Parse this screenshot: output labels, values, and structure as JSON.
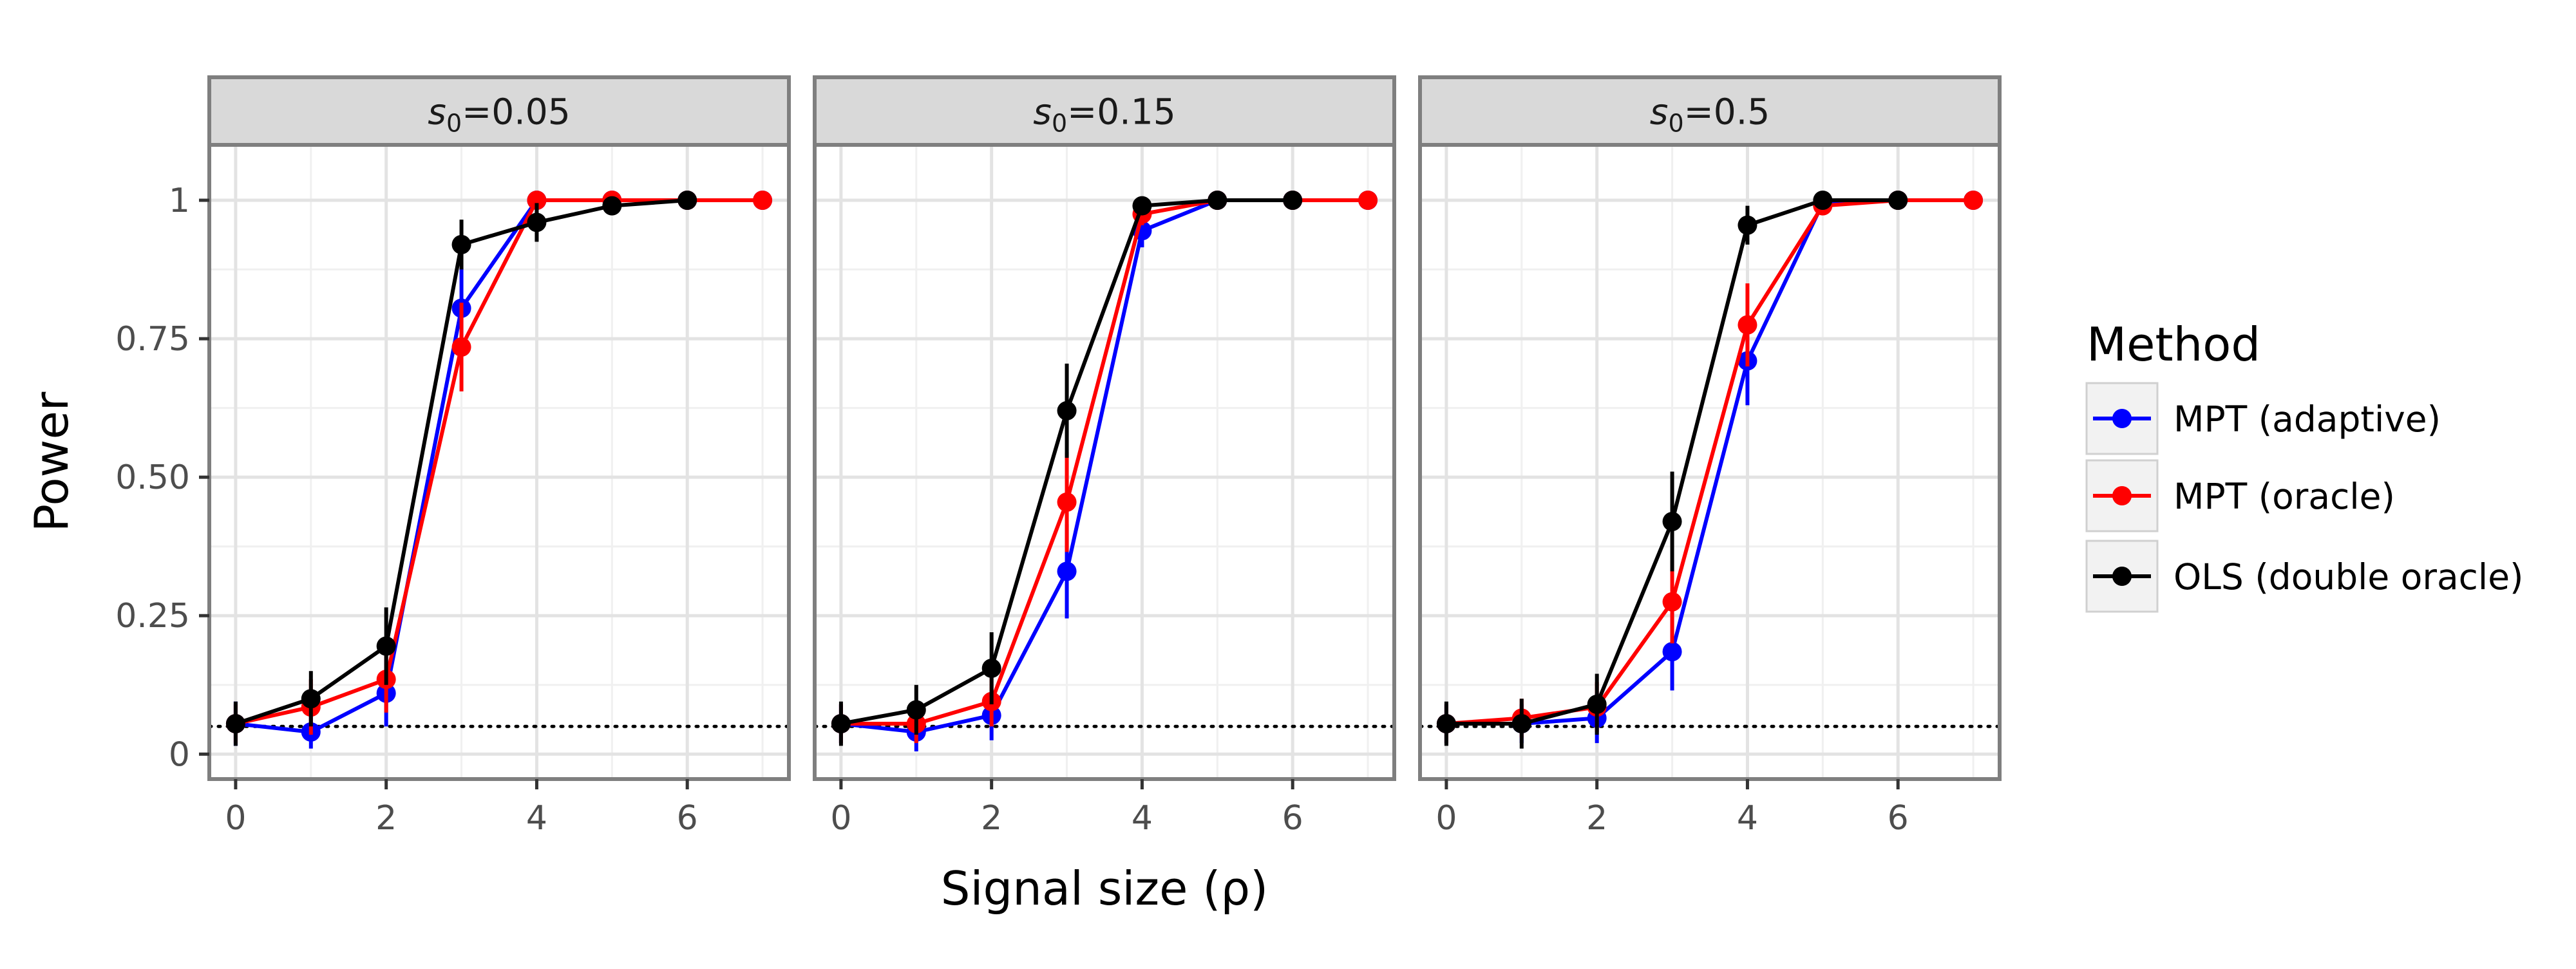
{
  "chart_data": {
    "type": "line",
    "xlabel": "Signal size (ρ)",
    "ylabel": "Power",
    "xlim": [
      -0.35,
      7.35
    ],
    "ylim": [
      -0.045,
      1.1
    ],
    "xticks": [
      0,
      2,
      4,
      6
    ],
    "xtick_labels": [
      "0",
      "2",
      "4",
      "6"
    ],
    "yticks": [
      0,
      0.25,
      0.5,
      0.75,
      1
    ],
    "ytick_labels": [
      "0",
      "0.25",
      "0.50",
      "0.75",
      "1"
    ],
    "reference_line": {
      "y": 0.05,
      "style": "dotted"
    },
    "legend": {
      "title": "Method",
      "position": "right",
      "entries": [
        "MPT (adaptive)",
        "MPT (oracle)",
        "OLS (double oracle)"
      ]
    },
    "panels": [
      {
        "strip": {
          "prefix": "s",
          "sub": "0",
          "suffix": "=0.05"
        },
        "series": [
          {
            "name": "MPT (adaptive)",
            "color": "#0000ff",
            "x": [
              0,
              1,
              2,
              3,
              4,
              5,
              6,
              7
            ],
            "y": [
              0.055,
              0.04,
              0.11,
              0.805,
              1.0,
              1.0,
              1.0,
              1.0
            ],
            "err": [
              0.04,
              0.03,
              0.06,
              0.07,
              0,
              0,
              0,
              0
            ]
          },
          {
            "name": "MPT (oracle)",
            "color": "#ff0000",
            "x": [
              0,
              1,
              2,
              3,
              4,
              5,
              6,
              7
            ],
            "y": [
              0.055,
              0.085,
              0.135,
              0.735,
              1.0,
              1.0,
              1.0,
              1.0
            ],
            "err": [
              0.035,
              0.05,
              0.06,
              0.08,
              0,
              0,
              0,
              0
            ]
          },
          {
            "name": "OLS (double oracle)",
            "color": "#000000",
            "x": [
              0,
              1,
              2,
              3,
              4,
              5,
              6
            ],
            "y": [
              0.055,
              0.1,
              0.195,
              0.92,
              0.96,
              0.99,
              1.0
            ],
            "err": [
              0.04,
              0.05,
              0.07,
              0.045,
              0.035,
              0.012,
              0
            ]
          }
        ]
      },
      {
        "strip": {
          "prefix": "s",
          "sub": "0",
          "suffix": "=0.15"
        },
        "series": [
          {
            "name": "MPT (adaptive)",
            "color": "#0000ff",
            "x": [
              0,
              1,
              2,
              3,
              4,
              5,
              6,
              7
            ],
            "y": [
              0.055,
              0.04,
              0.07,
              0.33,
              0.945,
              1.0,
              1.0,
              1.0
            ],
            "err": [
              0.035,
              0.035,
              0.045,
              0.085,
              0.03,
              0,
              0,
              0
            ]
          },
          {
            "name": "MPT (oracle)",
            "color": "#ff0000",
            "x": [
              0,
              1,
              2,
              3,
              4,
              5,
              6,
              7
            ],
            "y": [
              0.055,
              0.055,
              0.095,
              0.455,
              0.975,
              1.0,
              1.0,
              1.0
            ],
            "err": [
              0.035,
              0.035,
              0.045,
              0.09,
              0.02,
              0,
              0,
              0
            ]
          },
          {
            "name": "OLS (double oracle)",
            "color": "#000000",
            "x": [
              0,
              1,
              2,
              3,
              4,
              5,
              6
            ],
            "y": [
              0.055,
              0.08,
              0.155,
              0.62,
              0.99,
              1.0,
              1.0
            ],
            "err": [
              0.04,
              0.045,
              0.065,
              0.085,
              0.012,
              0,
              0
            ]
          }
        ]
      },
      {
        "strip": {
          "prefix": "s",
          "sub": "0",
          "suffix": "=0.5"
        },
        "series": [
          {
            "name": "MPT (adaptive)",
            "color": "#0000ff",
            "x": [
              0,
              1,
              2,
              3,
              4,
              5,
              6,
              7
            ],
            "y": [
              0.055,
              0.055,
              0.065,
              0.185,
              0.71,
              0.995,
              1.0,
              1.0
            ],
            "err": [
              0.035,
              0.035,
              0.045,
              0.07,
              0.08,
              0.01,
              0,
              0
            ]
          },
          {
            "name": "MPT (oracle)",
            "color": "#ff0000",
            "x": [
              0,
              1,
              2,
              3,
              4,
              5,
              6,
              7
            ],
            "y": [
              0.055,
              0.065,
              0.085,
              0.275,
              0.775,
              0.99,
              1.0,
              1.0
            ],
            "err": [
              0.035,
              0.035,
              0.045,
              0.075,
              0.075,
              0.012,
              0,
              0
            ]
          },
          {
            "name": "OLS (double oracle)",
            "color": "#000000",
            "x": [
              0,
              1,
              2,
              3,
              4,
              5,
              6
            ],
            "y": [
              0.055,
              0.055,
              0.09,
              0.42,
              0.955,
              1.0,
              1.0
            ],
            "err": [
              0.04,
              0.045,
              0.055,
              0.09,
              0.035,
              0,
              0
            ]
          }
        ]
      }
    ]
  }
}
